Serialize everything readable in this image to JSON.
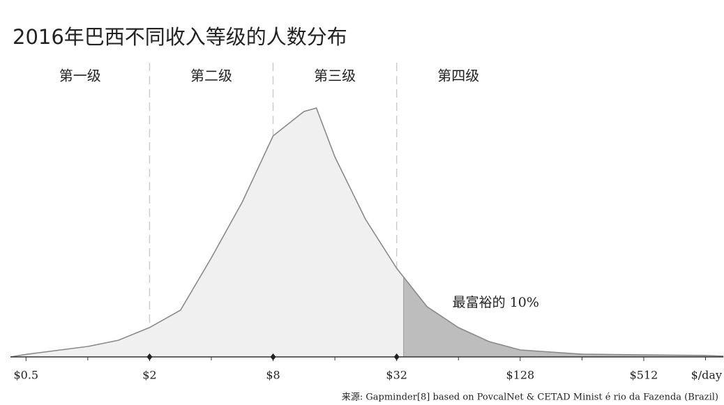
{
  "chart_data": {
    "type": "area",
    "title": "2016年巴西不同收入等级的人数分布",
    "x": [
      0.42,
      0.5,
      1,
      1.41,
      2,
      2.83,
      4,
      5.66,
      8,
      11.3,
      13,
      16,
      22.6,
      32,
      45,
      64,
      90,
      128,
      256,
      512,
      1024,
      1250
    ],
    "values": [
      0,
      1,
      4.2,
      6.7,
      11.8,
      18.8,
      39.8,
      62.2,
      88.8,
      98.6,
      100,
      80.4,
      55.2,
      35.6,
      20.2,
      11.8,
      6.2,
      2.8,
      1.1,
      0.8,
      0.6,
      0.3
    ],
    "color": "#f0f0f0",
    "line_color": "#8a8a8a",
    "xlim": [
      0.42,
      1250
    ],
    "log_x": true,
    "ylim": [
      0,
      100
    ],
    "xticks": [
      {
        "value": 0.5,
        "label": "$0.5"
      },
      {
        "value": 2,
        "label": "$2"
      },
      {
        "value": 8,
        "label": "$8"
      },
      {
        "value": 32,
        "label": "$32"
      },
      {
        "value": 128,
        "label": "$128"
      },
      {
        "value": 512,
        "label": "$512"
      }
    ],
    "minor_xticks": [
      1,
      4,
      16,
      64,
      256,
      1024
    ],
    "xlabel": "$/day",
    "level_bounds": [
      2,
      8,
      32
    ],
    "levels": [
      "第一级",
      "第二级",
      "第三级",
      "第四级"
    ],
    "highlight": {
      "from": 34.6,
      "label": "最富裕的 10%",
      "color": "#bdbdbd"
    },
    "source": "来源: Gapminder[8] based on PovcalNet & CETAD Minist é rio da Fazenda (Brazil)"
  }
}
